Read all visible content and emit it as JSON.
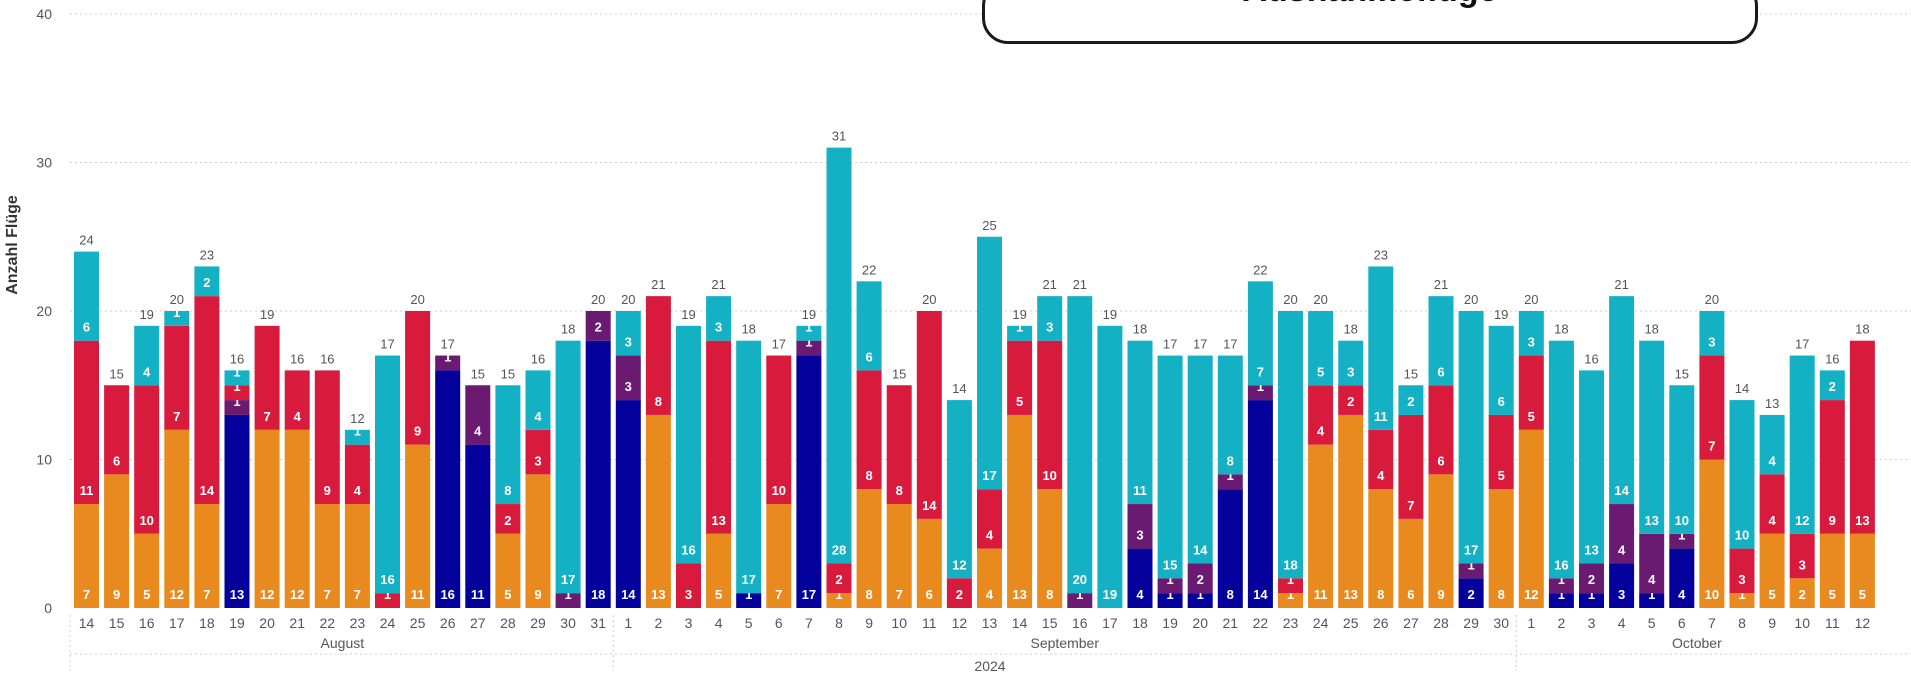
{
  "colors": {
    "orange": "#E98A1F",
    "red": "#D81B3C",
    "purple": "#6B1A72",
    "navy": "#03009B",
    "teal": "#14B1C5"
  },
  "chart_data": {
    "type": "bar",
    "stacked": true,
    "title": "Ausnahmeflüge",
    "ylabel": "Anzahl Flüge",
    "xlabel": "",
    "ylim": [
      0,
      40
    ],
    "yticks": [
      0,
      10,
      20,
      30,
      40
    ],
    "grid": true,
    "year_label": "2024",
    "stack_order": [
      "navy",
      "orange",
      "purple",
      "red",
      "teal"
    ],
    "month_groups": [
      {
        "label": "August",
        "start": 0,
        "end": 17
      },
      {
        "label": "September",
        "start": 18,
        "end": 47
      },
      {
        "label": "October",
        "start": 48,
        "end": 59
      }
    ],
    "categories": [
      "14",
      "15",
      "16",
      "17",
      "18",
      "19",
      "20",
      "21",
      "22",
      "23",
      "24",
      "25",
      "26",
      "27",
      "28",
      "29",
      "30",
      "31",
      "1",
      "2",
      "3",
      "4",
      "5",
      "6",
      "7",
      "8",
      "9",
      "10",
      "11",
      "12",
      "13",
      "14",
      "15",
      "16",
      "17",
      "18",
      "19",
      "20",
      "21",
      "22",
      "23",
      "24",
      "25",
      "26",
      "27",
      "28",
      "29",
      "30",
      "1",
      "2",
      "3",
      "4",
      "5",
      "6",
      "7",
      "8",
      "9",
      "10",
      "11",
      "12"
    ],
    "totals": [
      24,
      15,
      19,
      20,
      23,
      16,
      19,
      16,
      16,
      12,
      17,
      20,
      17,
      15,
      15,
      16,
      18,
      20,
      20,
      21,
      19,
      21,
      18,
      17,
      19,
      31,
      22,
      15,
      20,
      14,
      25,
      19,
      21,
      21,
      19,
      18,
      17,
      17,
      17,
      22,
      20,
      20,
      18,
      23,
      15,
      21,
      20,
      19,
      20,
      18,
      16,
      21,
      18,
      15,
      20,
      14,
      13,
      17,
      16,
      18
    ],
    "bars": [
      {
        "orange": 7,
        "red": 11,
        "teal": 6
      },
      {
        "orange": 9,
        "red": 6
      },
      {
        "orange": 5,
        "red": 10,
        "teal": 4
      },
      {
        "orange": 12,
        "red": 7,
        "teal": 1
      },
      {
        "orange": 7,
        "red": 14,
        "teal": 2
      },
      {
        "navy": 13,
        "purple": 1,
        "red": 1,
        "teal": 1
      },
      {
        "orange": 12,
        "red": 7
      },
      {
        "orange": 12,
        "red": 4
      },
      {
        "orange": 7,
        "red": 9
      },
      {
        "orange": 7,
        "red": 4,
        "teal": 1
      },
      {
        "red": 1,
        "teal": 16
      },
      {
        "orange": 11,
        "red": 9
      },
      {
        "navy": 16,
        "purple": 1
      },
      {
        "navy": 11,
        "purple": 4
      },
      {
        "orange": 5,
        "red": 2,
        "teal": 8
      },
      {
        "orange": 9,
        "red": 3,
        "teal": 4
      },
      {
        "purple": 1,
        "teal": 17
      },
      {
        "navy": 18,
        "purple": 2
      },
      {
        "navy": 14,
        "purple": 3,
        "teal": 3
      },
      {
        "orange": 13,
        "red": 8
      },
      {
        "red": 3,
        "teal": 16
      },
      {
        "orange": 5,
        "red": 13,
        "teal": 3
      },
      {
        "navy": 1,
        "teal": 17
      },
      {
        "orange": 7,
        "red": 10
      },
      {
        "navy": 17,
        "purple": 1,
        "teal": 1
      },
      {
        "orange": 1,
        "red": 2,
        "teal": 28
      },
      {
        "orange": 8,
        "red": 8,
        "teal": 6
      },
      {
        "orange": 7,
        "red": 8
      },
      {
        "orange": 6,
        "red": 14
      },
      {
        "red": 2,
        "teal": 12
      },
      {
        "orange": 4,
        "red": 4,
        "teal": 17
      },
      {
        "orange": 13,
        "red": 5,
        "teal": 1
      },
      {
        "orange": 8,
        "red": 10,
        "teal": 3
      },
      {
        "purple": 1,
        "teal": 20
      },
      {
        "teal": 19
      },
      {
        "navy": 4,
        "purple": 3,
        "teal": 11
      },
      {
        "navy": 1,
        "purple": 1,
        "teal": 15
      },
      {
        "navy": 1,
        "purple": 2,
        "teal": 14
      },
      {
        "navy": 8,
        "purple": 1,
        "teal": 8
      },
      {
        "navy": 14,
        "purple": 1,
        "teal": 7
      },
      {
        "orange": 1,
        "red": 1,
        "teal": 18
      },
      {
        "orange": 11,
        "red": 4,
        "teal": 5
      },
      {
        "orange": 13,
        "red": 2,
        "teal": 3
      },
      {
        "orange": 8,
        "red": 4,
        "teal": 11
      },
      {
        "orange": 6,
        "red": 7,
        "teal": 2
      },
      {
        "orange": 9,
        "red": 6,
        "teal": 6
      },
      {
        "navy": 2,
        "purple": 1,
        "teal": 17
      },
      {
        "orange": 8,
        "red": 5,
        "teal": 6
      },
      {
        "orange": 12,
        "red": 5,
        "teal": 3
      },
      {
        "navy": 1,
        "purple": 1,
        "teal": 16
      },
      {
        "navy": 1,
        "purple": 2,
        "teal": 13
      },
      {
        "navy": 3,
        "purple": 4,
        "teal": 14
      },
      {
        "navy": 1,
        "purple": 4,
        "teal": 13
      },
      {
        "navy": 4,
        "purple": 1,
        "teal": 10
      },
      {
        "orange": 10,
        "red": 7,
        "teal": 3
      },
      {
        "orange": 1,
        "red": 3,
        "teal": 10
      },
      {
        "orange": 5,
        "red": 4,
        "teal": 4
      },
      {
        "orange": 2,
        "red": 3,
        "teal": 12
      },
      {
        "orange": 5,
        "red": 9,
        "teal": 2
      },
      {
        "orange": 5,
        "red": 13
      }
    ]
  }
}
